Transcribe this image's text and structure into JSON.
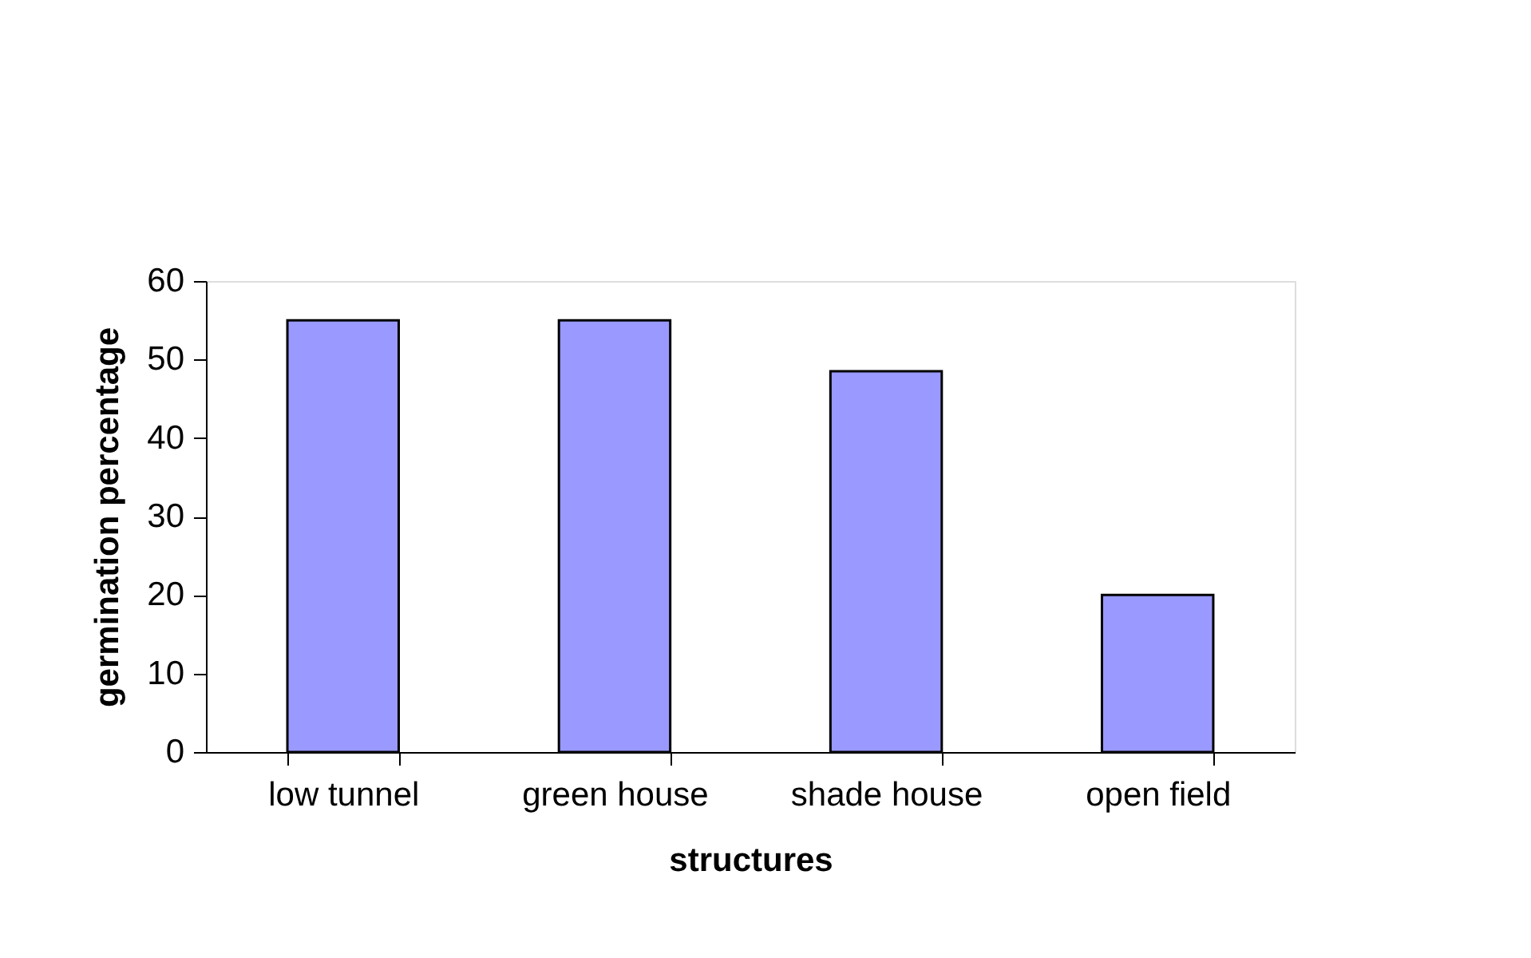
{
  "chart_data": {
    "type": "bar",
    "xlabel": "structures",
    "ylabel": "germination percentage",
    "categories": [
      "low tunnel",
      "green house",
      "shade house",
      "open field"
    ],
    "values": [
      55,
      55,
      48.5,
      20
    ],
    "color": "#9999ff",
    "ylim": [
      0,
      60
    ],
    "yticks": [
      0,
      10,
      20,
      30,
      40,
      50,
      60
    ],
    "grid": false,
    "legend": false
  }
}
